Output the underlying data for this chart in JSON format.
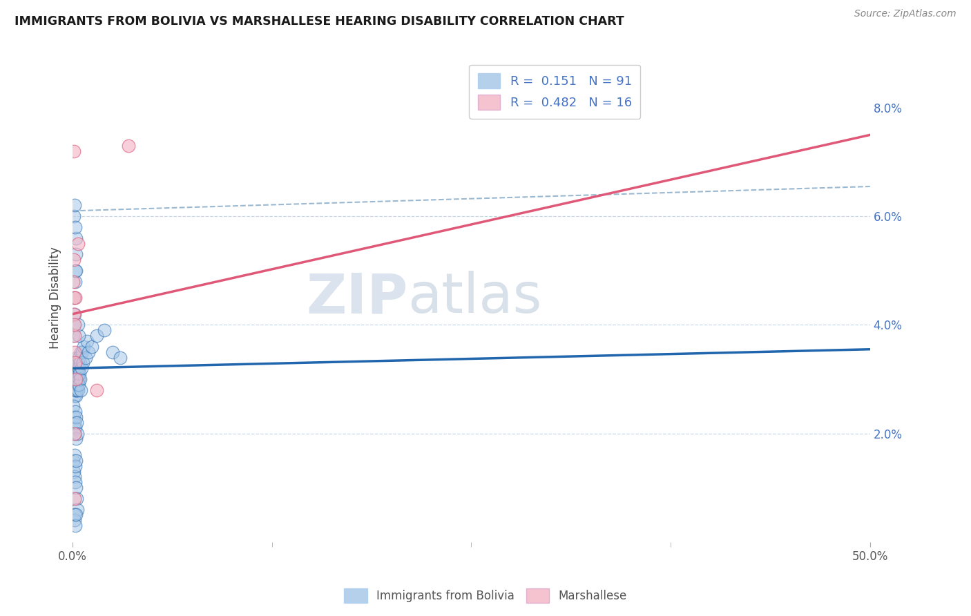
{
  "title": "IMMIGRANTS FROM BOLIVIA VS MARSHALLESE HEARING DISABILITY CORRELATION CHART",
  "source": "Source: ZipAtlas.com",
  "xlim": [
    0,
    50
  ],
  "ylim": [
    0,
    9
  ],
  "blue_color": "#a8c8e8",
  "pink_color": "#f4b8c8",
  "blue_line_color": "#2166ac",
  "pink_line_color": "#e05878",
  "dashed_line_color": "#9ab8d0",
  "grid_color": "#c8d8e8",
  "watermark_color": "#ccd8e8",
  "blue_trendline": [
    [
      0,
      3.2
    ],
    [
      50,
      3.55
    ]
  ],
  "pink_trendline": [
    [
      0,
      4.2
    ],
    [
      50,
      7.5
    ]
  ],
  "dashed_line": [
    [
      0,
      6.1
    ],
    [
      50,
      6.55
    ]
  ],
  "blue_scatter": [
    [
      0.05,
      3.2
    ],
    [
      0.06,
      3.1
    ],
    [
      0.07,
      3.3
    ],
    [
      0.08,
      2.9
    ],
    [
      0.09,
      3.0
    ],
    [
      0.1,
      3.1
    ],
    [
      0.1,
      2.8
    ],
    [
      0.11,
      3.2
    ],
    [
      0.12,
      3.0
    ],
    [
      0.12,
      2.7
    ],
    [
      0.13,
      3.1
    ],
    [
      0.14,
      2.9
    ],
    [
      0.15,
      3.3
    ],
    [
      0.15,
      3.0
    ],
    [
      0.16,
      2.8
    ],
    [
      0.17,
      3.1
    ],
    [
      0.18,
      2.9
    ],
    [
      0.19,
      3.2
    ],
    [
      0.2,
      3.0
    ],
    [
      0.2,
      2.7
    ],
    [
      0.21,
      3.3
    ],
    [
      0.22,
      3.1
    ],
    [
      0.22,
      2.8
    ],
    [
      0.23,
      3.0
    ],
    [
      0.24,
      3.2
    ],
    [
      0.25,
      2.9
    ],
    [
      0.25,
      3.4
    ],
    [
      0.26,
      3.1
    ],
    [
      0.27,
      2.8
    ],
    [
      0.28,
      3.0
    ],
    [
      0.3,
      3.2
    ],
    [
      0.3,
      2.9
    ],
    [
      0.32,
      3.1
    ],
    [
      0.34,
      2.8
    ],
    [
      0.35,
      3.3
    ],
    [
      0.36,
      3.0
    ],
    [
      0.38,
      3.2
    ],
    [
      0.4,
      2.9
    ],
    [
      0.4,
      3.4
    ],
    [
      0.42,
      3.1
    ],
    [
      0.45,
      3.0
    ],
    [
      0.48,
      3.3
    ],
    [
      0.5,
      2.8
    ],
    [
      0.5,
      3.5
    ],
    [
      0.05,
      2.5
    ],
    [
      0.07,
      2.3
    ],
    [
      0.1,
      2.2
    ],
    [
      0.12,
      2.0
    ],
    [
      0.15,
      2.4
    ],
    [
      0.18,
      2.1
    ],
    [
      0.2,
      2.3
    ],
    [
      0.22,
      1.9
    ],
    [
      0.25,
      2.2
    ],
    [
      0.28,
      2.0
    ],
    [
      0.05,
      1.5
    ],
    [
      0.08,
      1.3
    ],
    [
      0.1,
      1.6
    ],
    [
      0.12,
      1.2
    ],
    [
      0.15,
      1.4
    ],
    [
      0.18,
      1.1
    ],
    [
      0.2,
      1.5
    ],
    [
      0.22,
      1.0
    ],
    [
      0.25,
      0.8
    ],
    [
      0.28,
      0.6
    ],
    [
      0.05,
      3.8
    ],
    [
      0.08,
      4.0
    ],
    [
      0.1,
      4.2
    ],
    [
      0.12,
      4.5
    ],
    [
      0.15,
      4.8
    ],
    [
      0.18,
      5.0
    ],
    [
      0.2,
      5.3
    ],
    [
      0.22,
      5.6
    ],
    [
      0.08,
      6.0
    ],
    [
      0.1,
      6.2
    ],
    [
      0.15,
      5.8
    ],
    [
      0.2,
      5.0
    ],
    [
      0.55,
      3.2
    ],
    [
      0.6,
      3.5
    ],
    [
      0.65,
      3.3
    ],
    [
      0.7,
      3.6
    ],
    [
      0.8,
      3.4
    ],
    [
      0.9,
      3.7
    ],
    [
      1.0,
      3.5
    ],
    [
      1.2,
      3.6
    ],
    [
      1.5,
      3.8
    ],
    [
      2.0,
      3.9
    ],
    [
      2.5,
      3.5
    ],
    [
      3.0,
      3.4
    ],
    [
      0.4,
      3.8
    ],
    [
      0.35,
      4.0
    ],
    [
      0.1,
      0.4
    ],
    [
      0.12,
      0.5
    ],
    [
      0.15,
      0.3
    ],
    [
      0.2,
      0.5
    ]
  ],
  "pink_scatter": [
    [
      0.05,
      4.8
    ],
    [
      0.06,
      4.5
    ],
    [
      0.08,
      4.2
    ],
    [
      0.1,
      3.8
    ],
    [
      0.1,
      4.0
    ],
    [
      0.12,
      3.5
    ],
    [
      0.15,
      3.3
    ],
    [
      0.18,
      4.5
    ],
    [
      0.2,
      3.0
    ],
    [
      0.1,
      2.0
    ],
    [
      0.08,
      7.2
    ],
    [
      0.06,
      5.2
    ],
    [
      0.35,
      5.5
    ],
    [
      1.5,
      2.8
    ],
    [
      0.1,
      0.8
    ],
    [
      3.5,
      7.3
    ]
  ]
}
